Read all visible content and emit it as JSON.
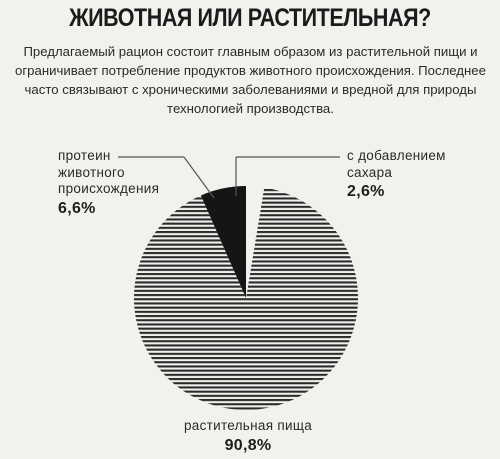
{
  "title": "ЖИВОТНАЯ ИЛИ РАСТИТЕЛЬНАЯ?",
  "subtitle": "Предлагаемый рацион состоит главным образом из растительной пищи и ограничивает потребление продуктов животного происхождения. Последнее часто связывают с хроническими заболеваниями и вредной для природы технологией производства.",
  "colors": {
    "background": "#f2f1ed",
    "stripes": "#2b2b2b",
    "animal_slice": "#151515",
    "sugar_slice": "#f2f1ed"
  },
  "chart_data": {
    "type": "pie",
    "title": "",
    "unit": "%",
    "slices": [
      {
        "label_lines": [
          "протеин",
          "животного",
          "происхождения"
        ],
        "value": 6.6,
        "display": "6,6%",
        "fill": "solid-black"
      },
      {
        "label_lines": [
          "растительная пища"
        ],
        "value": 90.8,
        "display": "90,8%",
        "fill": "horizontal-stripes"
      },
      {
        "label_lines": [
          "с добавлением",
          "сахара"
        ],
        "value": 2.6,
        "display": "2,6%",
        "fill": "background"
      }
    ]
  }
}
